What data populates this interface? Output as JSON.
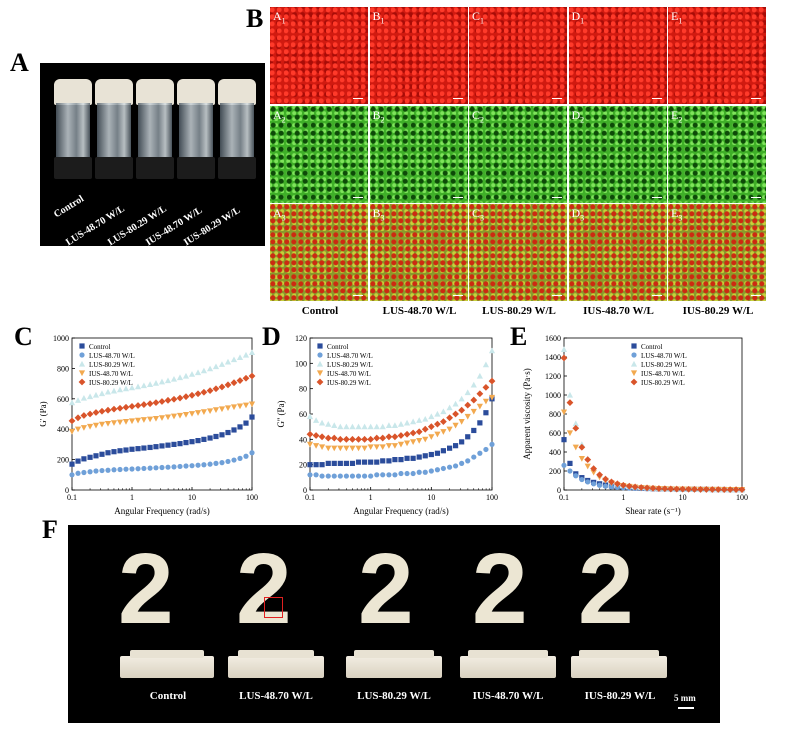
{
  "panel_letters": {
    "a": "A",
    "b": "B",
    "c": "C",
    "d": "D",
    "e": "E",
    "f": "F"
  },
  "samples": [
    "Control",
    "LUS-48.70 W/L",
    "LUS-80.29 W/L",
    "IUS-48.70 W/L",
    "IUS-80.29 W/L"
  ],
  "panel_b": {
    "row_labels": [
      [
        "A1",
        "B1",
        "C1",
        "D1",
        "E1"
      ],
      [
        "A2",
        "B2",
        "C2",
        "D2",
        "E2"
      ],
      [
        "A3",
        "B3",
        "C3",
        "D3",
        "E3"
      ]
    ],
    "row_channels": [
      "red",
      "green",
      "merge"
    ],
    "column_labels": [
      "Control",
      "LUS-48.70 W/L",
      "LUS-80.29 W/L",
      "IUS-48.70 W/L",
      "IUS-80.29 W/L"
    ]
  },
  "panel_f": {
    "digit": "2",
    "scale_bar": "5 mm",
    "labels": [
      "Control",
      "LUS-48.70 W/L",
      "LUS-80.29 W/L",
      "IUS-48.70 W/L",
      "IUS-80.29 W/L"
    ]
  },
  "colors": {
    "Control": "#2b4c9b",
    "LUS-48.70 W/L": "#6fa0d8",
    "LUS-80.29 W/L": "#c9e7ea",
    "IUS-48.70 W/L": "#f2a94f",
    "IUS-80.29 W/L": "#d9542a"
  },
  "chart_data": [
    {
      "id": "C",
      "type": "scatter",
      "ylabel": "G' (Pa)",
      "xlabel": "Angular Frequency (rad/s)",
      "xscale": "log",
      "xlim": [
        0.1,
        100
      ],
      "ylim": [
        0,
        1000
      ],
      "yticks": [
        0,
        200,
        400,
        600,
        800,
        1000
      ],
      "xticks": [
        "0.1",
        "1",
        "10",
        "100"
      ],
      "x": [
        0.1,
        0.126,
        0.158,
        0.2,
        0.251,
        0.316,
        0.398,
        0.501,
        0.631,
        0.794,
        1,
        1.26,
        1.58,
        2,
        2.51,
        3.16,
        3.98,
        5.01,
        6.31,
        7.94,
        10,
        12.6,
        15.8,
        20,
        25.1,
        31.6,
        39.8,
        50.1,
        63.1,
        79.4,
        100
      ],
      "legend_position": "top-left",
      "series": [
        {
          "name": "Control",
          "values": [
            170,
            190,
            205,
            215,
            225,
            235,
            245,
            252,
            258,
            263,
            268,
            272,
            276,
            280,
            285,
            290,
            295,
            300,
            305,
            312,
            318,
            325,
            333,
            342,
            352,
            363,
            378,
            395,
            415,
            440,
            480
          ]
        },
        {
          "name": "LUS-48.70 W/L",
          "values": [
            100,
            110,
            115,
            120,
            125,
            128,
            130,
            133,
            135,
            137,
            138,
            140,
            142,
            144,
            146,
            148,
            150,
            152,
            155,
            158,
            160,
            163,
            166,
            170,
            175,
            180,
            188,
            197,
            208,
            222,
            245
          ]
        },
        {
          "name": "LUS-80.29 W/L",
          "values": [
            575,
            590,
            605,
            615,
            625,
            635,
            645,
            652,
            660,
            667,
            673,
            680,
            687,
            695,
            703,
            712,
            720,
            730,
            740,
            750,
            762,
            773,
            785,
            798,
            812,
            827,
            843,
            858,
            872,
            888,
            905
          ]
        },
        {
          "name": "IUS-48.70 W/L",
          "values": [
            385,
            400,
            410,
            418,
            425,
            432,
            437,
            442,
            446,
            450,
            454,
            458,
            462,
            466,
            470,
            475,
            480,
            485,
            490,
            496,
            502,
            508,
            514,
            520,
            527,
            533,
            540,
            546,
            552,
            558,
            565
          ]
        },
        {
          "name": "IUS-80.29 W/L",
          "values": [
            455,
            475,
            490,
            500,
            510,
            518,
            525,
            532,
            538,
            544,
            550,
            556,
            562,
            568,
            575,
            582,
            590,
            597,
            605,
            614,
            623,
            633,
            643,
            654,
            666,
            678,
            692,
            706,
            720,
            735,
            750
          ]
        }
      ]
    },
    {
      "id": "D",
      "type": "scatter",
      "ylabel": "G'' (Pa)",
      "xlabel": "Angular Frequency (rad/s)",
      "xscale": "log",
      "xlim": [
        0.1,
        100
      ],
      "ylim": [
        0,
        120
      ],
      "yticks": [
        0,
        20,
        40,
        60,
        80,
        100,
        120
      ],
      "xticks": [
        "0.1",
        "1",
        "10",
        "100"
      ],
      "x": [
        0.1,
        0.126,
        0.158,
        0.2,
        0.251,
        0.316,
        0.398,
        0.501,
        0.631,
        0.794,
        1,
        1.26,
        1.58,
        2,
        2.51,
        3.16,
        3.98,
        5.01,
        6.31,
        7.94,
        10,
        12.6,
        15.8,
        20,
        25.1,
        31.6,
        39.8,
        50.1,
        63.1,
        79.4,
        100
      ],
      "legend_position": "top-left",
      "series": [
        {
          "name": "Control",
          "values": [
            20,
            20,
            20,
            21,
            21,
            21,
            21,
            21,
            22,
            22,
            22,
            22,
            23,
            23,
            24,
            24,
            25,
            25,
            26,
            27,
            28,
            29,
            31,
            33,
            35,
            38,
            42,
            47,
            53,
            61,
            72
          ]
        },
        {
          "name": "LUS-48.70 W/L",
          "values": [
            12,
            12,
            11,
            11,
            11,
            11,
            11,
            11,
            11,
            11,
            11,
            12,
            12,
            12,
            12,
            13,
            13,
            13,
            14,
            14,
            15,
            16,
            17,
            18,
            19,
            21,
            23,
            26,
            29,
            32,
            36
          ]
        },
        {
          "name": "LUS-80.29 W/L",
          "values": [
            58,
            55,
            53,
            52,
            51,
            50,
            50,
            50,
            50,
            50,
            50,
            50,
            50,
            51,
            51,
            52,
            53,
            54,
            55,
            56,
            58,
            60,
            62,
            65,
            68,
            72,
            77,
            83,
            90,
            99,
            110
          ]
        },
        {
          "name": "IUS-48.70 W/L",
          "values": [
            36,
            35,
            34,
            33,
            33,
            33,
            33,
            33,
            33,
            33,
            34,
            34,
            34,
            35,
            35,
            36,
            37,
            38,
            39,
            40,
            42,
            44,
            46,
            48,
            51,
            54,
            58,
            62,
            66,
            70,
            73
          ]
        },
        {
          "name": "IUS-80.29 W/L",
          "values": [
            44,
            43,
            42,
            41,
            41,
            40,
            40,
            40,
            40,
            40,
            40,
            41,
            41,
            42,
            42,
            43,
            44,
            45,
            46,
            48,
            50,
            52,
            54,
            57,
            60,
            63,
            67,
            71,
            76,
            81,
            86
          ]
        }
      ]
    },
    {
      "id": "E",
      "type": "scatter",
      "ylabel": "Apparent viscosity (Pa·s)",
      "xlabel": "Shear rate (s⁻¹)",
      "xscale": "log",
      "xlim": [
        0.1,
        100
      ],
      "ylim": [
        0,
        1600
      ],
      "yticks": [
        0,
        200,
        400,
        600,
        800,
        1000,
        1200,
        1400,
        1600
      ],
      "xticks": [
        "0.1",
        "1",
        "10",
        "100"
      ],
      "x": [
        0.1,
        0.126,
        0.158,
        0.2,
        0.251,
        0.316,
        0.398,
        0.501,
        0.631,
        0.794,
        1,
        1.26,
        1.58,
        2,
        2.51,
        3.16,
        3.98,
        5.01,
        6.31,
        7.94,
        10,
        12.6,
        15.8,
        20,
        25.1,
        31.6,
        39.8,
        50.1,
        63.1,
        79.4,
        100
      ],
      "legend_position": "top-right",
      "series": [
        {
          "name": "Control",
          "values": [
            530,
            280,
            170,
            130,
            100,
            80,
            65,
            52,
            42,
            35,
            30,
            25,
            21,
            18,
            16,
            14,
            12,
            11,
            10,
            9,
            8,
            7,
            7,
            6,
            6,
            5,
            5,
            5,
            4,
            4,
            4
          ]
        },
        {
          "name": "LUS-48.70 W/L",
          "values": [
            260,
            200,
            150,
            110,
            85,
            65,
            50,
            40,
            33,
            27,
            23,
            20,
            17,
            15,
            13,
            12,
            10,
            9,
            8,
            7,
            7,
            6,
            6,
            5,
            5,
            4,
            4,
            4,
            3,
            3,
            3
          ]
        },
        {
          "name": "LUS-80.29 W/L",
          "values": [
            1480,
            1000,
            700,
            480,
            330,
            230,
            160,
            115,
            85,
            65,
            50,
            40,
            32,
            26,
            22,
            18,
            15,
            13,
            11,
            10,
            9,
            8,
            7,
            6,
            6,
            5,
            5,
            4,
            4,
            4,
            4
          ]
        },
        {
          "name": "IUS-48.70 W/L",
          "values": [
            820,
            600,
            450,
            330,
            250,
            185,
            135,
            100,
            75,
            58,
            46,
            37,
            30,
            25,
            21,
            18,
            15,
            13,
            11,
            10,
            9,
            8,
            7,
            6,
            6,
            5,
            5,
            4,
            4,
            4,
            4
          ]
        },
        {
          "name": "IUS-80.29 W/L",
          "values": [
            1390,
            920,
            650,
            450,
            320,
            225,
            160,
            115,
            85,
            65,
            50,
            40,
            32,
            26,
            22,
            18,
            15,
            13,
            11,
            10,
            9,
            8,
            7,
            6,
            6,
            5,
            5,
            4,
            4,
            4,
            4
          ]
        }
      ]
    }
  ]
}
